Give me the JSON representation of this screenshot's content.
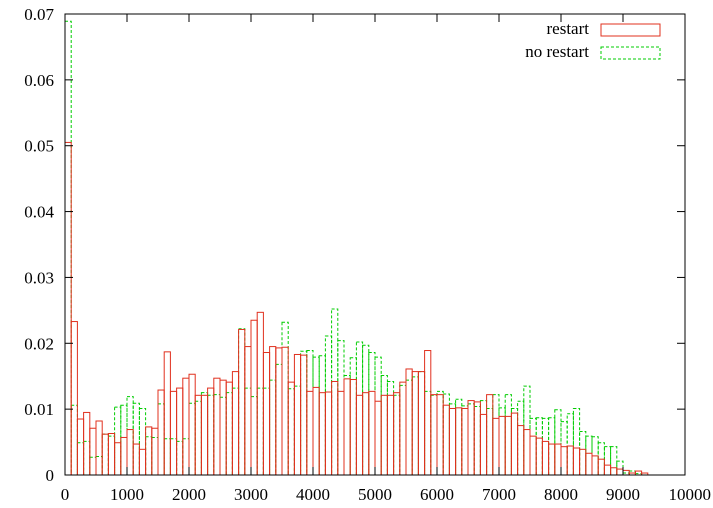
{
  "chart_data": {
    "type": "bar",
    "title": "",
    "xlabel": "",
    "ylabel": "",
    "xlim": [
      0,
      10000
    ],
    "ylim": [
      0,
      0.07
    ],
    "bin_width": 100,
    "grid": false,
    "legend_position": "top-right",
    "xticks": [
      0,
      1000,
      2000,
      3000,
      4000,
      5000,
      6000,
      7000,
      8000,
      9000,
      10000
    ],
    "xtick_labels": [
      "0",
      "1000",
      "2000",
      "3000",
      "4000",
      "5000",
      "6000",
      "7000",
      "8000",
      "9000",
      "10000"
    ],
    "yticks": [
      0,
      0.01,
      0.02,
      0.03,
      0.04,
      0.05,
      0.06,
      0.07
    ],
    "ytick_labels": [
      "0",
      "0.01",
      "0.02",
      "0.03",
      "0.04",
      "0.05",
      "0.06",
      "0.07"
    ],
    "x": [
      0,
      100,
      200,
      300,
      400,
      500,
      600,
      700,
      800,
      900,
      1000,
      1100,
      1200,
      1300,
      1400,
      1500,
      1600,
      1700,
      1800,
      1900,
      2000,
      2100,
      2200,
      2300,
      2400,
      2500,
      2600,
      2700,
      2800,
      2900,
      3000,
      3100,
      3200,
      3300,
      3400,
      3500,
      3600,
      3700,
      3800,
      3900,
      4000,
      4100,
      4200,
      4300,
      4400,
      4500,
      4600,
      4700,
      4800,
      4900,
      5000,
      5100,
      5200,
      5300,
      5400,
      5500,
      5600,
      5700,
      5800,
      5900,
      6000,
      6100,
      6200,
      6300,
      6400,
      6500,
      6600,
      6700,
      6800,
      6900,
      7000,
      7100,
      7200,
      7300,
      7400,
      7500,
      7600,
      7700,
      7800,
      7900,
      8000,
      8100,
      8200,
      8300,
      8400,
      8500,
      8600,
      8700,
      8800,
      8900,
      9000,
      9100,
      9200,
      9300,
      9400,
      9500
    ],
    "series": [
      {
        "name": "restart",
        "color": "#e0301e",
        "dash": "solid",
        "values": [
          0.0505,
          0.0233,
          0.0085,
          0.0095,
          0.0071,
          0.0082,
          0.0062,
          0.0063,
          0.0049,
          0.0057,
          0.0069,
          0.0047,
          0.0039,
          0.0073,
          0.0071,
          0.0129,
          0.0187,
          0.0127,
          0.0132,
          0.0147,
          0.0153,
          0.0121,
          0.0121,
          0.0132,
          0.0147,
          0.0144,
          0.0141,
          0.0157,
          0.0221,
          0.0195,
          0.0235,
          0.0247,
          0.0186,
          0.0195,
          0.0193,
          0.0194,
          0.0141,
          0.0183,
          0.0182,
          0.0127,
          0.0133,
          0.0125,
          0.0126,
          0.0142,
          0.0127,
          0.0146,
          0.0145,
          0.0121,
          0.0125,
          0.0127,
          0.0112,
          0.0121,
          0.0121,
          0.0125,
          0.0141,
          0.0161,
          0.0157,
          0.0157,
          0.0189,
          0.0122,
          0.0122,
          0.0106,
          0.0101,
          0.0102,
          0.0101,
          0.0113,
          0.0111,
          0.0092,
          0.0122,
          0.0086,
          0.0089,
          0.0089,
          0.0094,
          0.0075,
          0.0069,
          0.0059,
          0.0056,
          0.0051,
          0.0047,
          0.0047,
          0.0043,
          0.0044,
          0.0041,
          0.0039,
          0.0033,
          0.0029,
          0.0024,
          0.0015,
          0.0011,
          0.0009,
          0.0007,
          0.0003,
          0.0006,
          0.0003,
          0,
          0
        ]
      },
      {
        "name": "no restart",
        "color": "#00cc00",
        "dash": "dashed",
        "values": [
          0.0689,
          0.0106,
          0.0049,
          0.0051,
          0.0027,
          0.0028,
          0.0062,
          0.0059,
          0.0103,
          0.0106,
          0.0119,
          0.0109,
          0.0101,
          0.0058,
          0.0057,
          0.0108,
          0.0055,
          0.0055,
          0.0051,
          0.0055,
          0.0109,
          0.0112,
          0.0125,
          0.0121,
          0.0122,
          0.0118,
          0.0125,
          0.0132,
          0.0222,
          0.0132,
          0.0119,
          0.0132,
          0.0132,
          0.0144,
          0.0168,
          0.0232,
          0.0131,
          0.0135,
          0.0188,
          0.0189,
          0.0179,
          0.0181,
          0.0211,
          0.0252,
          0.0204,
          0.0151,
          0.0178,
          0.0202,
          0.0197,
          0.0186,
          0.0179,
          0.0151,
          0.0142,
          0.0121,
          0.0136,
          0.0144,
          0.0149,
          0.0157,
          0.0127,
          0.0121,
          0.0127,
          0.0123,
          0.0108,
          0.0115,
          0.0105,
          0.0108,
          0.0104,
          0.0113,
          0.0101,
          0.0122,
          0.0102,
          0.0122,
          0.0101,
          0.0112,
          0.0135,
          0.0086,
          0.0087,
          0.0086,
          0.0087,
          0.0099,
          0.0081,
          0.0093,
          0.0101,
          0.0066,
          0.0059,
          0.0058,
          0.0049,
          0.0043,
          0.0043,
          0.0021,
          0.0003,
          0.0006,
          0.0002,
          0,
          0,
          0
        ]
      }
    ]
  }
}
